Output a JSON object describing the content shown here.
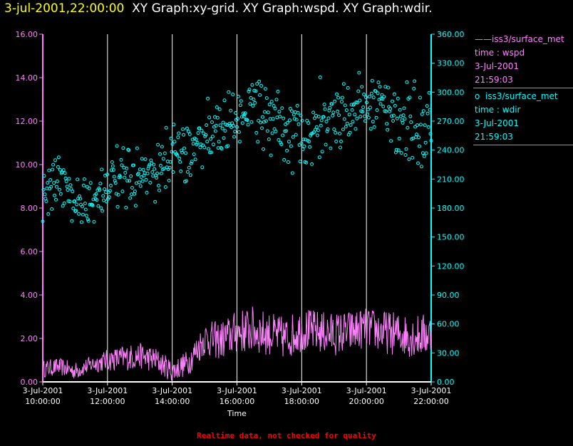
{
  "title": {
    "time": "3-jul-2001,22:00:00",
    "graphs": "XY Graph:xy-grid.  XY Graph:wspd.  XY Graph:wdir."
  },
  "colors": {
    "wspd": "#ff80ff",
    "wdir": "#00ffff",
    "grid": "#ffffff",
    "legend_sep": "#9a9a9a",
    "footer": "#ff0000",
    "title_time": "#ffff00"
  },
  "legend": [
    {
      "symbol": "——",
      "series": "iss3/surface_met",
      "label": "time : wspd",
      "date": "3-Jul-2001",
      "time": "21:59:03",
      "color": "#ff80ff"
    },
    {
      "symbol": "o",
      "series": "iss3/surface_met",
      "label": "time : wdir",
      "date": "3-Jul-2001",
      "time": "21:59:03",
      "color": "#00ffff"
    }
  ],
  "footer_note": "Realtime data, not checked for quality",
  "chart_data": {
    "type": "line",
    "xlabel": "Time",
    "x_range_hours": [
      10.0,
      22.0
    ],
    "x_ticks": [
      {
        "h": 10,
        "date": "3-Jul-2001",
        "time": "10:00:00"
      },
      {
        "h": 12,
        "date": "3-Jul-2001",
        "time": "12:00:00"
      },
      {
        "h": 14,
        "date": "3-Jul-2001",
        "time": "14:00:00"
      },
      {
        "h": 16,
        "date": "3-Jul-2001",
        "time": "16:00:00"
      },
      {
        "h": 18,
        "date": "3-Jul-2001",
        "time": "18:00:00"
      },
      {
        "h": 20,
        "date": "3-Jul-2001",
        "time": "20:00:00"
      },
      {
        "h": 22,
        "date": "3-Jul-2001",
        "time": "22:00:00"
      }
    ],
    "vertical_grid_hours": [
      12,
      14,
      16,
      18,
      20
    ],
    "left_axis": {
      "series": "wspd",
      "ylim": [
        0,
        16
      ],
      "ticks": [
        "0.00",
        "2.00",
        "4.00",
        "6.00",
        "8.00",
        "10.00",
        "12.00",
        "14.00",
        "16.00"
      ]
    },
    "right_axis": {
      "series": "wdir",
      "ylim": [
        0,
        360
      ],
      "ticks": [
        "0.00",
        "30.00",
        "60.00",
        "90.00",
        "120.00",
        "150.00",
        "180.00",
        "210.00",
        "240.00",
        "270.00",
        "300.00",
        "330.00",
        "360.00"
      ]
    },
    "series": [
      {
        "name": "wspd",
        "style": "line",
        "x": [
          10.0,
          10.5,
          11.0,
          11.5,
          12.0,
          12.5,
          13.0,
          13.5,
          14.0,
          14.5,
          15.0,
          15.5,
          16.0,
          16.5,
          17.0,
          17.5,
          18.0,
          18.5,
          19.0,
          19.5,
          20.0,
          20.5,
          21.0,
          21.5,
          22.0
        ],
        "y": [
          0.6,
          0.7,
          0.5,
          0.8,
          1.0,
          1.1,
          1.2,
          1.0,
          0.5,
          0.9,
          2.0,
          1.9,
          2.3,
          2.4,
          2.2,
          2.0,
          2.4,
          2.3,
          2.2,
          2.3,
          2.5,
          2.3,
          2.2,
          2.1,
          2.2
        ],
        "amplitude": [
          0.4,
          0.4,
          0.4,
          0.4,
          0.5,
          0.6,
          0.6,
          0.6,
          0.5,
          0.6,
          0.8,
          0.9,
          1.0,
          1.1,
          1.0,
          1.0,
          1.0,
          1.0,
          1.0,
          1.0,
          0.9,
          1.0,
          1.0,
          1.0,
          1.0
        ]
      },
      {
        "name": "wdir",
        "style": "scatter",
        "x": [
          10.0,
          10.5,
          11.0,
          11.5,
          12.0,
          12.5,
          13.0,
          13.5,
          14.0,
          14.5,
          15.0,
          15.5,
          16.0,
          16.5,
          17.0,
          17.5,
          18.0,
          18.5,
          19.0,
          19.5,
          20.0,
          20.5,
          21.0,
          21.5,
          22.0
        ],
        "y": [
          195,
          210,
          190,
          185,
          205,
          208,
          212,
          210,
          240,
          240,
          255,
          260,
          270,
          290,
          275,
          255,
          250,
          265,
          275,
          280,
          290,
          285,
          270,
          260,
          265
        ],
        "spread": [
          25,
          25,
          25,
          25,
          22,
          22,
          22,
          22,
          22,
          25,
          25,
          25,
          25,
          25,
          30,
          30,
          30,
          30,
          25,
          25,
          25,
          25,
          30,
          35,
          35
        ]
      }
    ]
  }
}
